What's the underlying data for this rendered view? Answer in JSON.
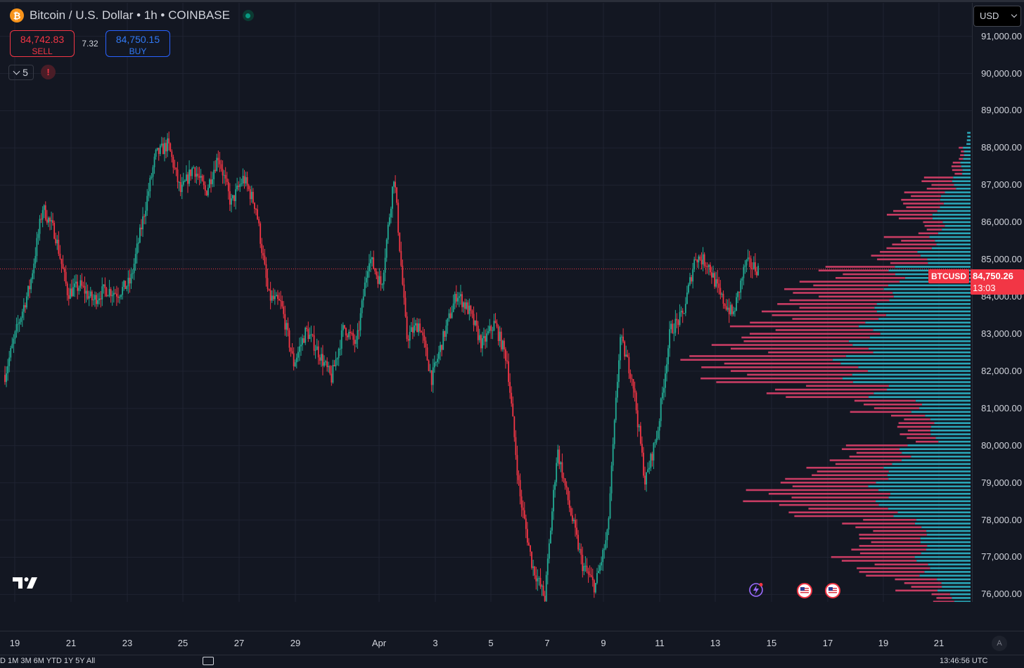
{
  "header": {
    "symbol_title": "Bitcoin / U.S. Dollar • 1h • COINBASE",
    "logo_glyph": "₿"
  },
  "trade": {
    "sell_price": "84,742.83",
    "sell_label": "SELL",
    "spread": "7.32",
    "buy_price": "84,750.15",
    "buy_label": "BUY"
  },
  "indicators": {
    "count": "5",
    "alert_glyph": "!"
  },
  "currency": {
    "selected": "USD"
  },
  "last_price": {
    "symbol": "BTCUSD",
    "price": "84,750.26",
    "countdown": "13:03",
    "value": 84750.26
  },
  "price_axis": {
    "labels": [
      "91,000.00",
      "90,000.00",
      "89,000.00",
      "88,000.00",
      "87,000.00",
      "86,000.00",
      "85,000.00",
      "84,000.00",
      "83,000.00",
      "82,000.00",
      "81,000.00",
      "80,000.00",
      "79,000.00",
      "78,000.00",
      "77,000.00",
      "76,000.00"
    ]
  },
  "time_axis": {
    "labels": [
      "19",
      "21",
      "23",
      "25",
      "27",
      "29",
      "Apr",
      "3",
      "5",
      "7",
      "9",
      "11",
      "13",
      "15",
      "17",
      "19",
      "21"
    ],
    "auto_scale": "A"
  },
  "bottom_toolbar": {
    "ranges": "D 1M 3M 6M YTD 1Y 5Y All",
    "clock": "13:46:56 UTC"
  },
  "colors": {
    "up": "#22ab94",
    "down": "#f23645",
    "profile_sell": "#c83c63",
    "profile_buy": "#2aa7b8",
    "background": "#131722",
    "grid": "#1f2331"
  },
  "chart_data": {
    "type": "candlestick",
    "title": "Bitcoin / U.S. Dollar • 1h • COINBASE",
    "ylim": [
      75800,
      91900
    ],
    "grid": true,
    "price_path": [
      {
        "date": "Mar 18",
        "price": 81900
      },
      {
        "date": "Mar 18",
        "price": 83200
      },
      {
        "date": "Mar 19",
        "price": 84300
      },
      {
        "date": "Mar 19",
        "price": 86400
      },
      {
        "date": "Mar 20",
        "price": 85700
      },
      {
        "date": "Mar 20",
        "price": 84100
      },
      {
        "date": "Mar 21",
        "price": 84300
      },
      {
        "date": "Mar 21",
        "price": 83900
      },
      {
        "date": "Mar 22",
        "price": 84200
      },
      {
        "date": "Mar 22",
        "price": 84100
      },
      {
        "date": "Mar 23",
        "price": 84400
      },
      {
        "date": "Mar 23",
        "price": 86100
      },
      {
        "date": "Mar 24",
        "price": 87800
      },
      {
        "date": "Mar 24",
        "price": 88100
      },
      {
        "date": "Mar 25",
        "price": 86800
      },
      {
        "date": "Mar 25",
        "price": 87500
      },
      {
        "date": "Mar 26",
        "price": 86800
      },
      {
        "date": "Mar 26",
        "price": 87800
      },
      {
        "date": "Mar 27",
        "price": 86500
      },
      {
        "date": "Mar 27",
        "price": 87200
      },
      {
        "date": "Mar 28",
        "price": 86400
      },
      {
        "date": "Mar 28",
        "price": 84000
      },
      {
        "date": "Mar 29",
        "price": 83800
      },
      {
        "date": "Mar 29",
        "price": 82200
      },
      {
        "date": "Mar 30",
        "price": 83100
      },
      {
        "date": "Mar 30",
        "price": 82500
      },
      {
        "date": "Mar 31",
        "price": 81800
      },
      {
        "date": "Mar 31",
        "price": 83200
      },
      {
        "date": "Apr 1",
        "price": 82700
      },
      {
        "date": "Apr 1",
        "price": 85100
      },
      {
        "date": "Apr 2",
        "price": 84300
      },
      {
        "date": "Apr 2",
        "price": 87300
      },
      {
        "date": "Apr 2",
        "price": 82900
      },
      {
        "date": "Apr 3",
        "price": 83300
      },
      {
        "date": "Apr 3",
        "price": 81800
      },
      {
        "date": "Apr 4",
        "price": 83000
      },
      {
        "date": "Apr 4",
        "price": 84100
      },
      {
        "date": "Apr 5",
        "price": 83600
      },
      {
        "date": "Apr 5",
        "price": 82700
      },
      {
        "date": "Apr 6",
        "price": 83300
      },
      {
        "date": "Apr 6",
        "price": 82300
      },
      {
        "date": "Apr 7",
        "price": 78700
      },
      {
        "date": "Apr 7",
        "price": 76800
      },
      {
        "date": "Apr 7",
        "price": 75900
      },
      {
        "date": "Apr 8",
        "price": 79900
      },
      {
        "date": "Apr 8",
        "price": 78300
      },
      {
        "date": "Apr 8",
        "price": 76800
      },
      {
        "date": "Apr 9",
        "price": 76200
      },
      {
        "date": "Apr 9",
        "price": 77600
      },
      {
        "date": "Apr 9",
        "price": 82900
      },
      {
        "date": "Apr 10",
        "price": 81800
      },
      {
        "date": "Apr 10",
        "price": 79000
      },
      {
        "date": "Apr 10",
        "price": 80400
      },
      {
        "date": "Apr 11",
        "price": 83100
      },
      {
        "date": "Apr 11",
        "price": 83500
      },
      {
        "date": "Apr 12",
        "price": 85100
      },
      {
        "date": "Apr 12",
        "price": 84900
      },
      {
        "date": "Apr 13",
        "price": 84000
      },
      {
        "date": "Apr 13",
        "price": 83500
      },
      {
        "date": "Apr 14",
        "price": 84900
      },
      {
        "date": "Apr 14",
        "price": 84750
      }
    ],
    "volume_profile": {
      "note_levels": "price levels in USD, sell/buy as relative volume",
      "levels": [
        {
          "price": 88400,
          "sell": 0,
          "buy": 4
        },
        {
          "price": 88000,
          "sell": 4,
          "buy": 8
        },
        {
          "price": 87600,
          "sell": 10,
          "buy": 10
        },
        {
          "price": 87200,
          "sell": 30,
          "buy": 18
        },
        {
          "price": 86800,
          "sell": 40,
          "buy": 30
        },
        {
          "price": 86400,
          "sell": 45,
          "buy": 38
        },
        {
          "price": 86000,
          "sell": 20,
          "buy": 32
        },
        {
          "price": 85600,
          "sell": 45,
          "buy": 42
        },
        {
          "price": 85200,
          "sell": 50,
          "buy": 52
        },
        {
          "price": 84800,
          "sell": 70,
          "buy": 80
        },
        {
          "price": 84400,
          "sell": 100,
          "buy": 85
        },
        {
          "price": 84000,
          "sell": 100,
          "buy": 95
        },
        {
          "price": 83600,
          "sell": 115,
          "buy": 105
        },
        {
          "price": 83200,
          "sell": 130,
          "buy": 112
        },
        {
          "price": 82800,
          "sell": 140,
          "buy": 120
        },
        {
          "price": 82400,
          "sell": 155,
          "buy": 135
        },
        {
          "price": 82000,
          "sell": 140,
          "buy": 125
        },
        {
          "price": 81600,
          "sell": 110,
          "buy": 100
        },
        {
          "price": 81200,
          "sell": 60,
          "buy": 60
        },
        {
          "price": 80800,
          "sell": 35,
          "buy": 45
        },
        {
          "price": 80400,
          "sell": 30,
          "buy": 40
        },
        {
          "price": 80000,
          "sell": 60,
          "buy": 70
        },
        {
          "price": 79600,
          "sell": 75,
          "buy": 85
        },
        {
          "price": 79200,
          "sell": 100,
          "buy": 100
        },
        {
          "price": 78800,
          "sell": 128,
          "buy": 98
        },
        {
          "price": 78400,
          "sell": 105,
          "buy": 90
        },
        {
          "price": 78000,
          "sell": 70,
          "buy": 55
        },
        {
          "price": 77600,
          "sell": 65,
          "buy": 50
        },
        {
          "price": 77200,
          "sell": 80,
          "buy": 55
        },
        {
          "price": 76800,
          "sell": 70,
          "buy": 50
        },
        {
          "price": 76400,
          "sell": 40,
          "buy": 35
        },
        {
          "price": 76000,
          "sell": 20,
          "buy": 20
        }
      ]
    }
  }
}
